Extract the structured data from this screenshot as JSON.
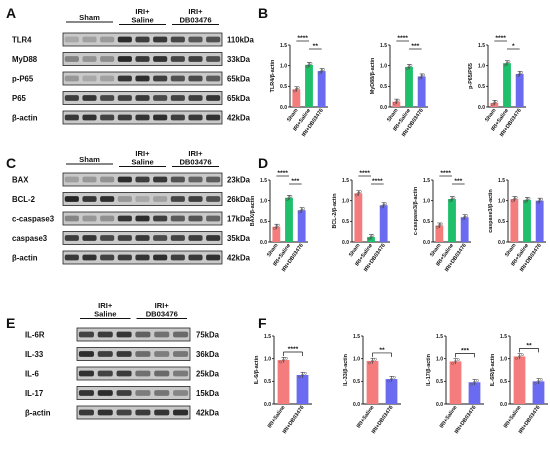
{
  "colors": {
    "sham": "#f47c7c",
    "saline": "#1fbf6b",
    "db": "#6b6bf2"
  },
  "blots": [
    {
      "label": "A",
      "panel": "A",
      "groups": [
        "Sham",
        "IRI+\nSaline",
        "IRI+\nDB03476"
      ],
      "lanesPerGroup": 3,
      "rows": [
        {
          "protein": "TLR4",
          "kda": "110kDa",
          "intensity": [
            0.25,
            0.85,
            0.72
          ]
        },
        {
          "protein": "MyD88",
          "kda": "33kDa",
          "intensity": [
            0.35,
            0.9,
            0.75
          ]
        },
        {
          "protein": "p-P65",
          "kda": "65kDa",
          "intensity": [
            0.25,
            0.85,
            0.7
          ]
        },
        {
          "protein": "P65",
          "kda": "65kDa",
          "intensity": [
            0.8,
            0.8,
            0.8
          ]
        },
        {
          "protein": "β-actin",
          "kda": "42kDa",
          "intensity": [
            0.85,
            0.85,
            0.85
          ]
        }
      ]
    },
    {
      "label": "C",
      "panel": "C",
      "groups": [
        "Sham",
        "IRI+\nSaline",
        "IRI+\nDB03476"
      ],
      "lanesPerGroup": 3,
      "rows": [
        {
          "protein": "BAX",
          "kda": "23kDa",
          "intensity": [
            0.3,
            0.85,
            0.65
          ]
        },
        {
          "protein": "BCL-2",
          "kda": "26kDa",
          "intensity": [
            0.9,
            0.25,
            0.75
          ]
        },
        {
          "protein": "c-caspase3",
          "kda": "17kDa",
          "intensity": [
            0.35,
            0.85,
            0.65
          ]
        },
        {
          "protein": "caspase3",
          "kda": "35kDa",
          "intensity": [
            0.8,
            0.8,
            0.8
          ]
        },
        {
          "protein": "β-actin",
          "kda": "42kDa",
          "intensity": [
            0.85,
            0.85,
            0.85
          ]
        }
      ]
    },
    {
      "label": "E",
      "panel": "E",
      "groups": [
        "IRI+\nSaline",
        "IRI+\nDB03476"
      ],
      "lanesPerGroup": 3,
      "rows": [
        {
          "protein": "IL-6R",
          "kda": "75kDa",
          "intensity": [
            0.85,
            0.55
          ]
        },
        {
          "protein": "IL-33",
          "kda": "36kDa",
          "intensity": [
            0.85,
            0.5
          ]
        },
        {
          "protein": "IL-6",
          "kda": "25kDa",
          "intensity": [
            0.85,
            0.5
          ]
        },
        {
          "protein": "IL-17",
          "kda": "15kDa",
          "intensity": [
            0.85,
            0.45
          ]
        },
        {
          "protein": "β-actin",
          "kda": "42kDa",
          "intensity": [
            0.85,
            0.85
          ]
        }
      ]
    }
  ],
  "chart_data": [
    {
      "panel": "B",
      "type": "bar",
      "ylabel": "TLR4/β-actin",
      "categories": [
        "Sham",
        "IRI+Saline",
        "IRI+DB03476"
      ],
      "values": [
        0.43,
        1.02,
        0.87
      ],
      "ylim": [
        0,
        1.5
      ],
      "yticks": [
        "0.0",
        "0.5",
        "1.0",
        "1.5"
      ],
      "sig": [
        [
          "****",
          0,
          1
        ],
        [
          "**",
          1,
          2
        ]
      ]
    },
    {
      "panel": "B",
      "type": "bar",
      "ylabel": "MyD88/β-actin",
      "categories": [
        "Sham",
        "IRI+Saline",
        "IRI+DB03476"
      ],
      "values": [
        0.13,
        0.97,
        0.74
      ],
      "ylim": [
        0,
        1.5
      ],
      "yticks": [
        "0.0",
        "0.5",
        "1.0",
        "1.5"
      ],
      "sig": [
        [
          "****",
          0,
          1
        ],
        [
          "***",
          1,
          2
        ]
      ]
    },
    {
      "panel": "B",
      "type": "bar",
      "ylabel": "p-P65/P65",
      "categories": [
        "Sham",
        "IRI+Saline",
        "IRI+DB03476"
      ],
      "values": [
        0.1,
        1.06,
        0.8
      ],
      "ylim": [
        0,
        1.5
      ],
      "yticks": [
        "0.0",
        "0.5",
        "1.0",
        "1.5"
      ],
      "sig": [
        [
          "****",
          0,
          1
        ],
        [
          "*",
          1,
          2
        ]
      ]
    },
    {
      "panel": "D",
      "type": "bar",
      "ylabel": "BAX/β-actin",
      "categories": [
        "Sham",
        "IRI+Saline",
        "IRI+DB03476"
      ],
      "values": [
        0.37,
        1.07,
        0.77
      ],
      "ylim": [
        0,
        1.5
      ],
      "yticks": [
        "0.0",
        "0.5",
        "1.0",
        "1.5"
      ],
      "sig": [
        [
          "****",
          0,
          1
        ],
        [
          "***",
          1,
          2
        ]
      ]
    },
    {
      "panel": "D",
      "type": "bar",
      "ylabel": "BCL-2/β-actin",
      "categories": [
        "Sham",
        "IRI+Saline",
        "IRI+DB03476"
      ],
      "values": [
        1.18,
        0.12,
        0.89
      ],
      "ylim": [
        0,
        1.5
      ],
      "yticks": [
        "0.0",
        "0.5",
        "1.0",
        "1.5"
      ],
      "sig": [
        [
          "****",
          0,
          1
        ],
        [
          "****",
          1,
          2
        ]
      ]
    },
    {
      "panel": "D",
      "type": "bar",
      "ylabel": "c-caspase3/β-actin",
      "categories": [
        "Sham",
        "IRI+Saline",
        "IRI+DB03476"
      ],
      "values": [
        0.4,
        1.04,
        0.6
      ],
      "ylim": [
        0,
        1.5
      ],
      "yticks": [
        "0.0",
        "0.5",
        "1.0",
        "1.5"
      ],
      "sig": [
        [
          "****",
          0,
          1
        ],
        [
          "***",
          1,
          2
        ]
      ]
    },
    {
      "panel": "D",
      "type": "bar",
      "ylabel": "caspase3/β-actin",
      "categories": [
        "Sham",
        "IRI+Saline",
        "IRI+DB03476"
      ],
      "values": [
        1.04,
        1.02,
        1.0
      ],
      "ylim": [
        0,
        1.5
      ],
      "yticks": [
        "0.0",
        "0.5",
        "1.0",
        "1.5"
      ],
      "sig": []
    },
    {
      "panel": "F",
      "type": "bar",
      "ylabel": "IL-6/β-actin",
      "categories": [
        "IRI+Saline",
        "IRI+DB03476"
      ],
      "values": [
        0.97,
        0.64
      ],
      "ylim": [
        0,
        1.5
      ],
      "yticks": [
        "0.0",
        "0.5",
        "1.0",
        "1.5"
      ],
      "sig": [
        [
          "****",
          0,
          1
        ]
      ]
    },
    {
      "panel": "F",
      "type": "bar",
      "ylabel": "IL-33/β-actin",
      "categories": [
        "IRI+Saline",
        "IRI+DB03476"
      ],
      "values": [
        0.95,
        0.55
      ],
      "ylim": [
        0,
        1.5
      ],
      "yticks": [
        "0.0",
        "0.5",
        "1.0",
        "1.5"
      ],
      "sig": [
        [
          "**",
          0,
          1
        ]
      ]
    },
    {
      "panel": "F",
      "type": "bar",
      "ylabel": "IL-17/β-actin",
      "categories": [
        "IRI+Saline",
        "IRI+DB03476"
      ],
      "values": [
        0.94,
        0.48
      ],
      "ylim": [
        0,
        1.5
      ],
      "yticks": [
        "0.0",
        "0.5",
        "1.0",
        "1.5"
      ],
      "sig": [
        [
          "***",
          0,
          1
        ]
      ]
    },
    {
      "panel": "F",
      "type": "bar",
      "ylabel": "IL-6R/β-actin",
      "categories": [
        "IRI+Saline",
        "IRI+DB03476"
      ],
      "values": [
        1.05,
        0.5
      ],
      "ylim": [
        0,
        1.5
      ],
      "yticks": [
        "0.0",
        "0.5",
        "1.0",
        "1.5"
      ],
      "sig": [
        [
          "**",
          0,
          1
        ]
      ]
    }
  ]
}
